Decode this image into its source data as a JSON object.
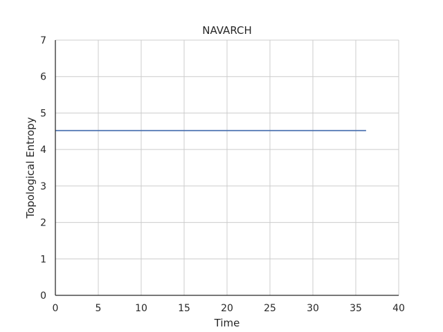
{
  "chart_data": {
    "type": "line",
    "title": "NAVARCH",
    "xlabel": "Time",
    "ylabel": "Topological Entropy",
    "xlim": [
      0,
      40
    ],
    "ylim": [
      0,
      7
    ],
    "xticks": [
      0,
      5,
      10,
      15,
      20,
      25,
      30,
      35,
      40
    ],
    "yticks": [
      0,
      1,
      2,
      3,
      4,
      5,
      6,
      7
    ],
    "grid": true,
    "series": [
      {
        "color": "#4c72b0",
        "x": [
          0,
          36.2
        ],
        "y": [
          4.52,
          4.52
        ]
      }
    ]
  }
}
